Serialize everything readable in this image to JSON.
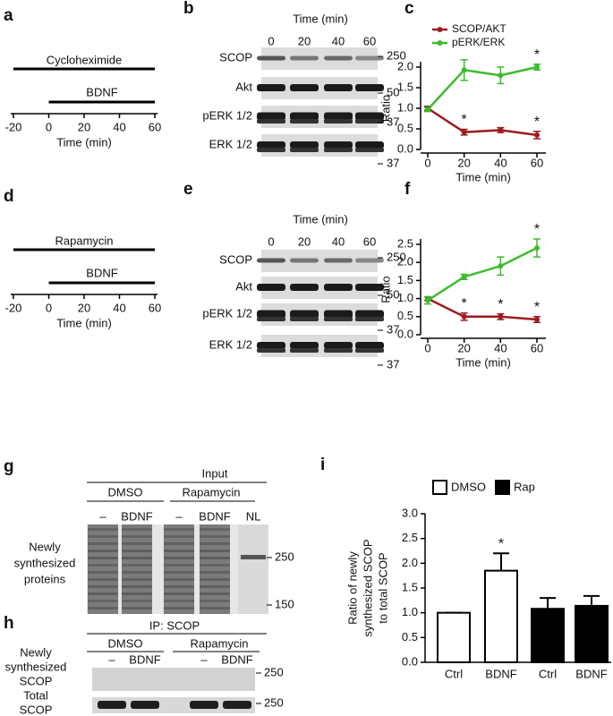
{
  "panel_a": {
    "letter": "a",
    "drug": "Cycloheximide",
    "treatment": "BDNF",
    "axis_label": "Time (min)",
    "ticks": [
      -20,
      0,
      20,
      40,
      60
    ]
  },
  "panel_d": {
    "letter": "d",
    "drug": "Rapamycin",
    "treatment": "BDNF",
    "axis_label": "Time (min)",
    "ticks": [
      -20,
      0,
      20,
      40,
      60
    ]
  },
  "panel_b": {
    "letter": "b",
    "time_label": "Time (min)",
    "lanes": [
      "0",
      "20",
      "40",
      "60"
    ],
    "rows": [
      "SCOP",
      "Akt",
      "pERK 1/2",
      "ERK 1/2"
    ],
    "markers": [
      "250",
      "50",
      "37",
      "37"
    ]
  },
  "panel_e": {
    "letter": "e",
    "time_label": "Time (min)",
    "lanes": [
      "0",
      "20",
      "40",
      "60"
    ],
    "rows": [
      "SCOP",
      "Akt",
      "pERK 1/2",
      "ERK 1/2"
    ],
    "markers": [
      "250",
      "50",
      "37",
      "37"
    ]
  },
  "panel_g": {
    "letter": "g",
    "header": "Input",
    "groups": [
      "DMSO",
      "Rapamycin"
    ],
    "lanes": [
      "–",
      "BDNF",
      "–",
      "BDNF",
      "NL"
    ],
    "row_label": [
      "Newly",
      "synthesized",
      "proteins"
    ],
    "markers": [
      "250",
      "150"
    ]
  },
  "panel_h": {
    "letter": "h",
    "header": "IP: SCOP",
    "groups": [
      "DMSO",
      "Rapamycin"
    ],
    "lanes": [
      "–",
      "BDNF",
      "–",
      "BDNF"
    ],
    "rows": [
      [
        "Newly",
        "synthesized",
        "SCOP"
      ],
      [
        "Total",
        "SCOP"
      ]
    ],
    "markers": [
      "250",
      "250"
    ]
  },
  "chart_data": [
    {
      "type": "line",
      "label": "c",
      "xlabel": "Time (min)",
      "ylabel": "Ratio",
      "x": [
        0,
        20,
        40,
        60
      ],
      "xlim": [
        0,
        60
      ],
      "xticks": [
        0,
        20,
        40,
        60
      ],
      "ylim": [
        0,
        2
      ],
      "yticks": [
        {
          "value": 0,
          "label": "0.0"
        },
        {
          "value": 0.5,
          "label": "0.5"
        },
        {
          "value": 1,
          "label": "1.0"
        },
        {
          "value": 1.5,
          "label": "1.5"
        },
        {
          "value": 2,
          "label": "2.0"
        }
      ],
      "legend": "upper left",
      "series": [
        {
          "name": "SCOP/AKT",
          "color": "#9c1c1f",
          "values": [
            1.0,
            0.42,
            0.47,
            0.35
          ],
          "errors": [
            0.05,
            0.07,
            0.06,
            0.09
          ],
          "annotations": [
            null,
            "*",
            null,
            "*"
          ]
        },
        {
          "name": "pERK/ERK",
          "color": "#3cbc2c",
          "values": [
            0.97,
            1.93,
            1.8,
            2.0
          ],
          "errors": [
            0.05,
            0.25,
            0.2,
            0.07
          ],
          "annotations": [
            null,
            null,
            null,
            "*"
          ]
        }
      ]
    },
    {
      "type": "line",
      "label": "f",
      "xlabel": "Time (min)",
      "ylabel": "Ratio",
      "x": [
        0,
        20,
        40,
        60
      ],
      "xlim": [
        0,
        60
      ],
      "xticks": [
        0,
        20,
        40,
        60
      ],
      "ylim": [
        0,
        2.5
      ],
      "yticks": [
        {
          "value": 0,
          "label": "0.0"
        },
        {
          "value": 0.5,
          "label": "0.5"
        },
        {
          "value": 1,
          "label": "1.0"
        },
        {
          "value": 1.5,
          "label": "1.5"
        },
        {
          "value": 2,
          "label": "2.0"
        },
        {
          "value": 2.5,
          "label": "2.5"
        }
      ],
      "series": [
        {
          "name": null,
          "color": "#9c1c1f",
          "values": [
            1.0,
            0.5,
            0.5,
            0.42
          ],
          "errors": [
            0.05,
            0.1,
            0.08,
            0.08
          ],
          "annotations": [
            null,
            "*",
            "*",
            "*"
          ]
        },
        {
          "name": null,
          "color": "#3cbc2c",
          "values": [
            0.95,
            1.6,
            1.9,
            2.4
          ],
          "errors": [
            0.1,
            0.07,
            0.25,
            0.25
          ],
          "annotations": [
            null,
            null,
            null,
            "*"
          ]
        }
      ]
    },
    {
      "type": "bar",
      "label": "i",
      "ylabel": [
        "Ratio of newly",
        "synthesized SCOP",
        "to total SCOP"
      ],
      "categories": [
        "Ctrl",
        "BDNF",
        "Ctrl",
        "BDNF"
      ],
      "ylim": [
        0,
        3
      ],
      "yticks": [
        {
          "value": 0,
          "label": "0.0"
        },
        {
          "value": 0.5,
          "label": "0.5"
        },
        {
          "value": 1,
          "label": "1.0"
        },
        {
          "value": 1.5,
          "label": "1.5"
        },
        {
          "value": 2,
          "label": "2.0"
        },
        {
          "value": 2.5,
          "label": "2.5"
        },
        {
          "value": 3,
          "label": "3.0"
        }
      ],
      "series": [
        {
          "name": "DMSO",
          "color": "#ffffff",
          "values": [
            1.0,
            1.85,
            null,
            null
          ],
          "errors": [
            0,
            0.35,
            null,
            null
          ],
          "annotations": [
            null,
            "*",
            null,
            null
          ]
        },
        {
          "name": "Rap",
          "color": "#000000",
          "values": [
            null,
            null,
            1.08,
            1.14
          ],
          "errors": [
            null,
            null,
            0.22,
            0.2
          ],
          "annotations": [
            null,
            null,
            null,
            null
          ]
        }
      ]
    }
  ]
}
